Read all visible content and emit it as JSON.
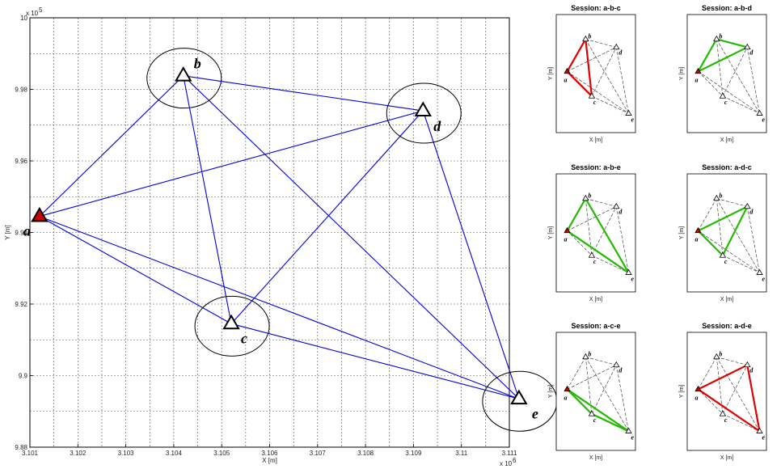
{
  "chart_data": [
    {
      "type": "scatter",
      "title": "",
      "xlabel": "X [m]",
      "ylabel": "Y [m]",
      "x_multiplier": "x 10",
      "x_multiplier_exp": "6",
      "y_multiplier": "x 10",
      "y_multiplier_exp": "5",
      "xlim": [
        3.101,
        3.111
      ],
      "ylim": [
        9.88,
        10.0
      ],
      "grid": true,
      "x_ticks": [
        "3.101",
        "3.102",
        "3.103",
        "3.104",
        "3.105",
        "3.106",
        "3.107",
        "3.108",
        "3.109",
        "3.11",
        "3.111"
      ],
      "y_ticks": [
        "9.88",
        "9.9",
        "9.92",
        "9.94",
        "9.96",
        "9.98",
        "10"
      ],
      "points": [
        {
          "label": "a",
          "x": 3.1012,
          "y": 9.9445,
          "color": "#cc0000"
        },
        {
          "label": "b",
          "x": 3.1042,
          "y": 9.9838,
          "color": "#ffffff"
        },
        {
          "label": "c",
          "x": 3.1052,
          "y": 9.9145,
          "color": "#ffffff"
        },
        {
          "label": "d",
          "x": 3.1092,
          "y": 9.974,
          "color": "#ffffff"
        },
        {
          "label": "e",
          "x": 3.1112,
          "y": 9.8935,
          "color": "#ffffff"
        }
      ],
      "edges": [
        [
          "a",
          "b"
        ],
        [
          "a",
          "c"
        ],
        [
          "a",
          "d"
        ],
        [
          "a",
          "e"
        ],
        [
          "b",
          "c"
        ],
        [
          "b",
          "d"
        ],
        [
          "b",
          "e"
        ],
        [
          "c",
          "d"
        ],
        [
          "c",
          "e"
        ],
        [
          "d",
          "e"
        ]
      ],
      "edge_color": "#0000dd"
    },
    {
      "type": "scatter",
      "title": "Session: a-b-c",
      "xlabel": "X [m]",
      "ylabel": "Y [m]",
      "highlight": [
        "a",
        "b",
        "c"
      ],
      "color": "#e00000"
    },
    {
      "type": "scatter",
      "title": "Session: a-b-d",
      "xlabel": "X [m]",
      "ylabel": "Y [m]",
      "highlight": [
        "a",
        "b",
        "d"
      ],
      "color": "#22bb00"
    },
    {
      "type": "scatter",
      "title": "Session: a-b-e",
      "xlabel": "X [m]",
      "ylabel": "Y [m]",
      "highlight": [
        "a",
        "b",
        "e"
      ],
      "color": "#22bb00"
    },
    {
      "type": "scatter",
      "title": "Session: a-d-c",
      "xlabel": "X [m]",
      "ylabel": "Y [m]",
      "highlight": [
        "a",
        "d",
        "c"
      ],
      "color": "#22bb00"
    },
    {
      "type": "scatter",
      "title": "Session: a-c-e",
      "xlabel": "X [m]",
      "ylabel": "Y [m]",
      "highlight": [
        "a",
        "c",
        "e"
      ],
      "color": "#22bb00"
    },
    {
      "type": "scatter",
      "title": "Session: a-d-e",
      "xlabel": "X [m]",
      "ylabel": "Y [m]",
      "highlight": [
        "a",
        "d",
        "e"
      ],
      "color": "#e00000"
    }
  ]
}
